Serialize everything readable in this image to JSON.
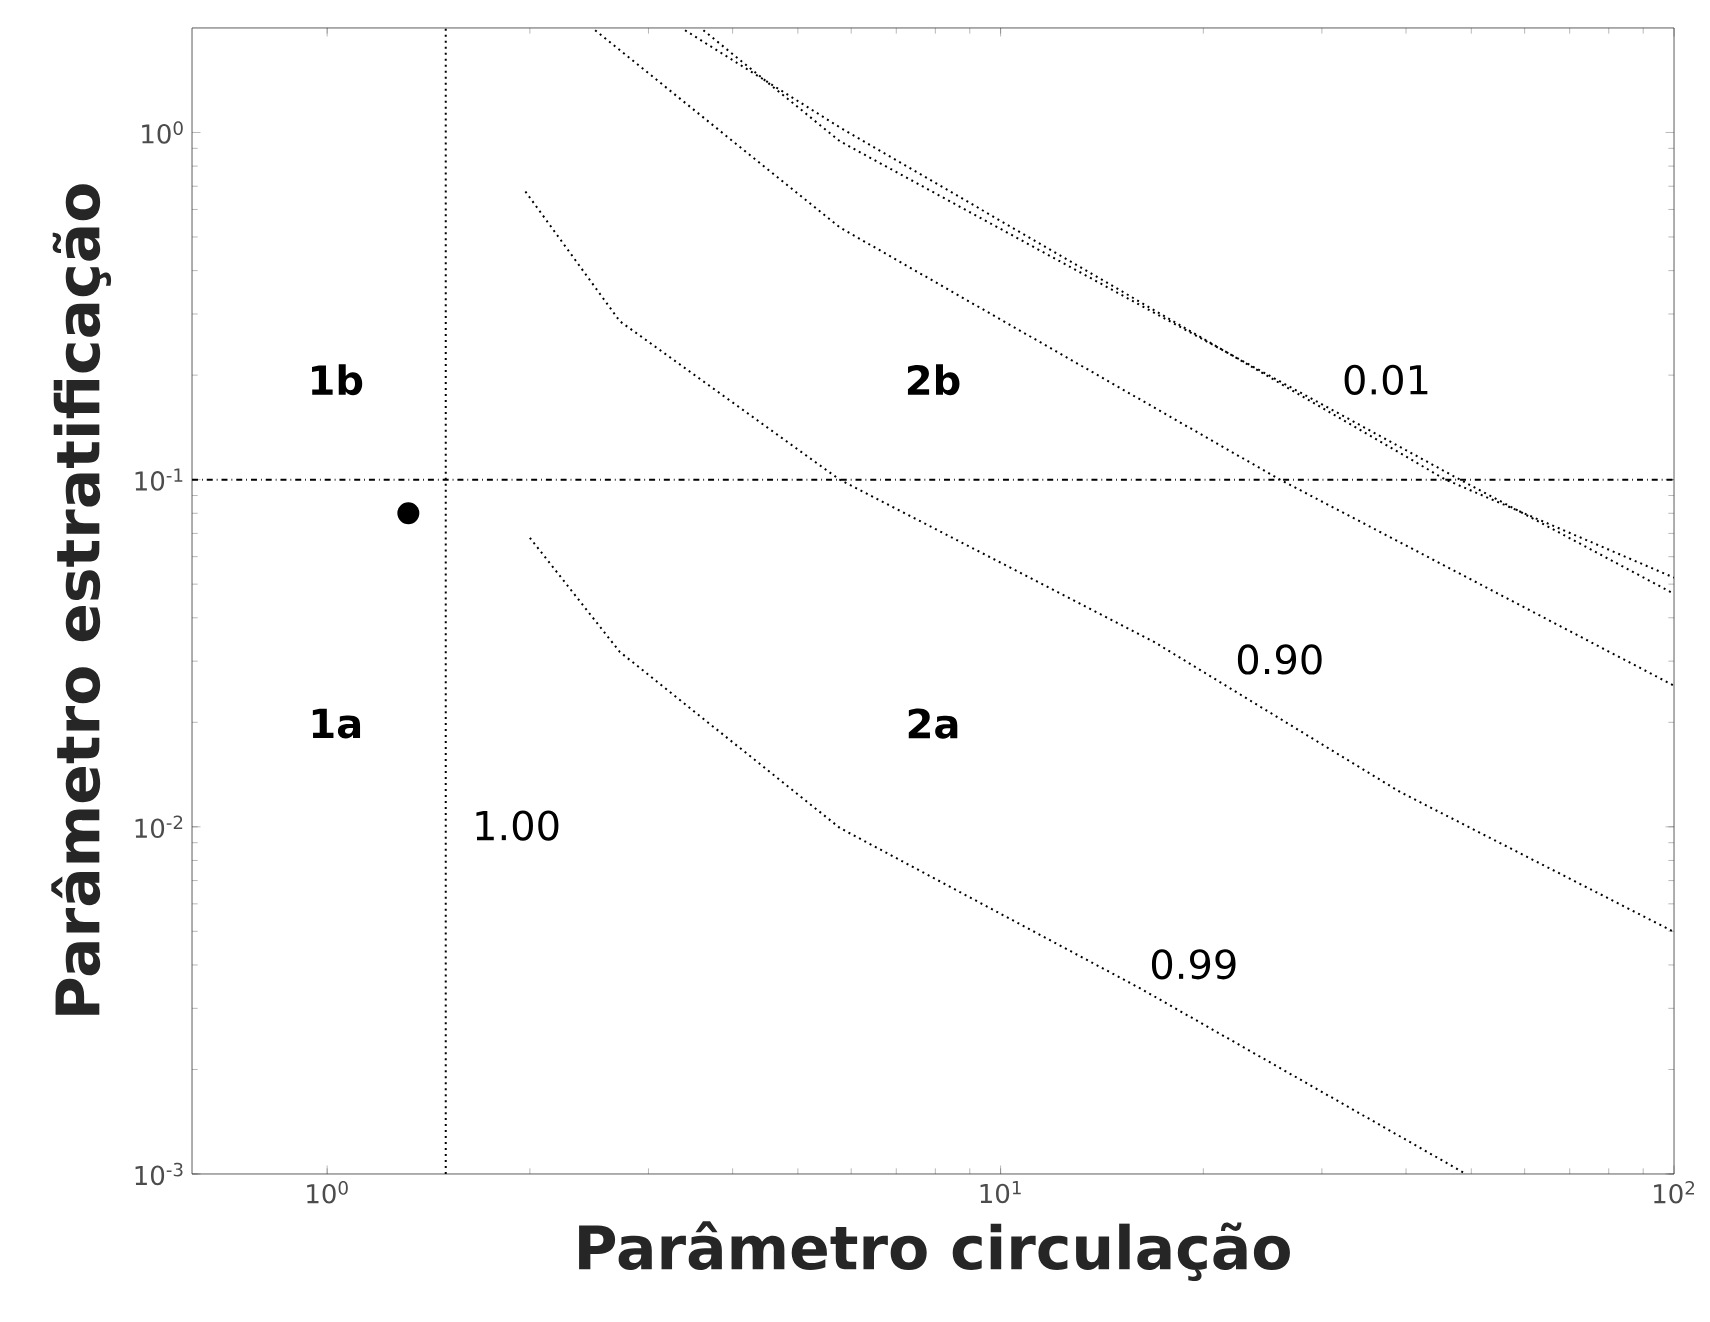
{
  "chart_data": {
    "type": "line",
    "xlabel": "Parâmetro circulação",
    "ylabel": "Parâmetro estratificação",
    "log": "xy",
    "xlim": [
      0.63,
      100
    ],
    "ylim": [
      0.001,
      2
    ],
    "xticks": [
      {
        "value": 1,
        "label": "10$^{0}$"
      },
      {
        "value": 10,
        "label": "10$^{1}$"
      },
      {
        "value": 100,
        "label": "10$^{2}$"
      }
    ],
    "yticks": [
      {
        "value": 0.001,
        "label": "10$^{-3}$"
      },
      {
        "value": 0.01,
        "label": "10$^{-2}$"
      },
      {
        "value": 0.1,
        "label": "10$^{-1}$"
      },
      {
        "value": 1,
        "label": "10$^{0}$"
      }
    ],
    "line_style": "dotted",
    "marker": "none",
    "grid": false,
    "legend": false,
    "series": [
      {
        "name": "0.99",
        "color": "#000000",
        "x": [
          2.0,
          2.72,
          5.77,
          16.1,
          49.1
        ],
        "values": [
          0.068,
          0.0319,
          0.00993,
          0.00343,
          0.001
        ]
      },
      {
        "name": "0.90",
        "color": "#000000",
        "x": [
          1.97,
          2.72,
          5.77,
          16.9,
          39.2,
          100
        ],
        "values": [
          0.676,
          0.286,
          0.1,
          0.0341,
          0.0126,
          0.00498
        ]
      },
      {
        "color": "#000000",
        "x": [
          2.5,
          5.77,
          26.0,
          100
        ],
        "values": [
          1.97,
          0.533,
          0.1,
          0.0255
        ]
      },
      {
        "name": "0.01",
        "color": "#000000",
        "x": [
          3.4,
          5.77,
          45.8,
          100
        ],
        "values": [
          1.97,
          1.035,
          0.1,
          0.0522
        ]
      },
      {
        "color": "#000000",
        "x": [
          3.62,
          5.77,
          48.1,
          100
        ],
        "values": [
          1.97,
          0.944,
          0.1,
          0.0469
        ]
      },
      {
        "name": "1.00",
        "color": "#000000",
        "x": [
          1.5,
          1.5
        ],
        "values": [
          0.001,
          2
        ]
      },
      {
        "type": "scatter",
        "marker": "circle",
        "color": "#000000",
        "x": [
          1.32
        ],
        "values": [
          0.08
        ]
      }
    ],
    "ref_lines": [
      {
        "axis": "y",
        "value": 0.1,
        "line_style": "dashdot",
        "color": "#000000"
      }
    ],
    "annotations": [
      "**1b**",
      "**1a**",
      "**2b**",
      "**2a**"
    ]
  }
}
